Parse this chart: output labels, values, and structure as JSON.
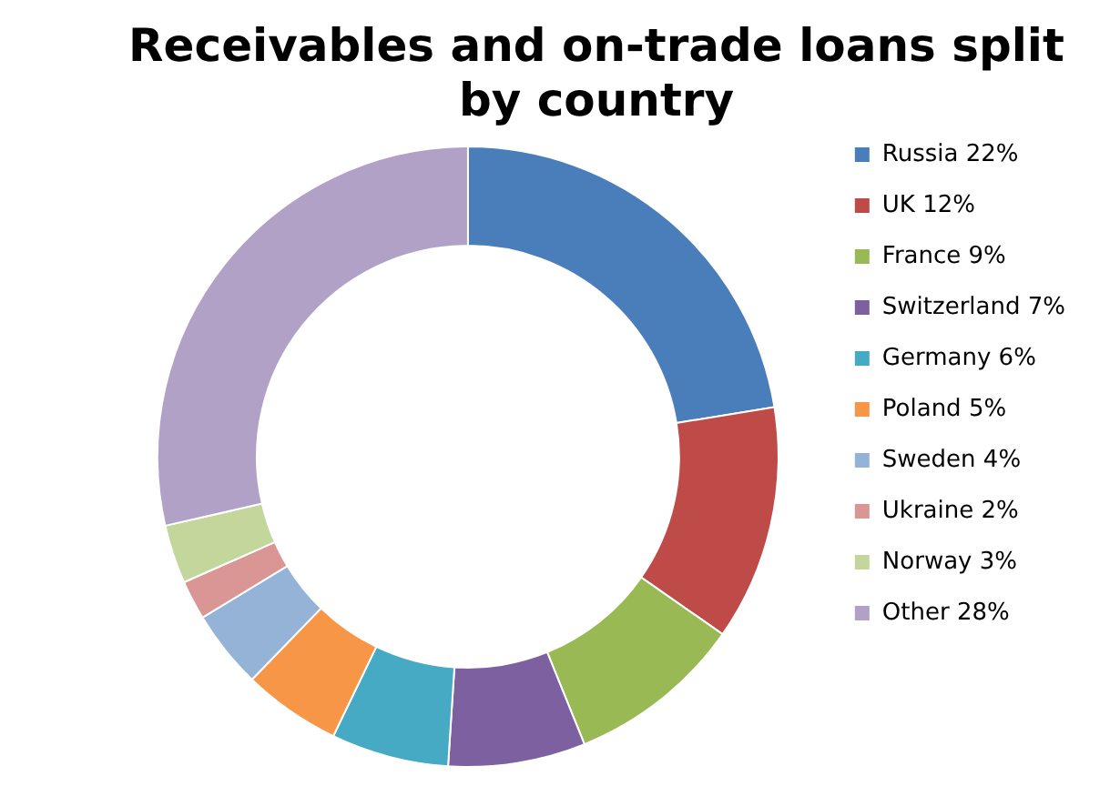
{
  "chart_data": {
    "type": "donut",
    "title": "Receivables and on-trade loans split by country",
    "categories": [
      "Russia",
      "UK",
      "France",
      "Switzerland",
      "Germany",
      "Poland",
      "Sweden",
      "Ukraine",
      "Norway",
      "Other"
    ],
    "values": [
      22,
      12,
      9,
      7,
      6,
      5,
      4,
      2,
      3,
      28
    ],
    "value_labels": [
      "22%",
      "12%",
      "9%",
      "7%",
      "6%",
      "5%",
      "4%",
      "2%",
      "3%",
      "28%"
    ],
    "colors": [
      "#4a7ebb",
      "#be4b48",
      "#98b954",
      "#7d60a0",
      "#46aac5",
      "#f79646",
      "#95b3d7",
      "#d99694",
      "#c3d69b",
      "#b2a1c7"
    ],
    "legend": "right"
  }
}
